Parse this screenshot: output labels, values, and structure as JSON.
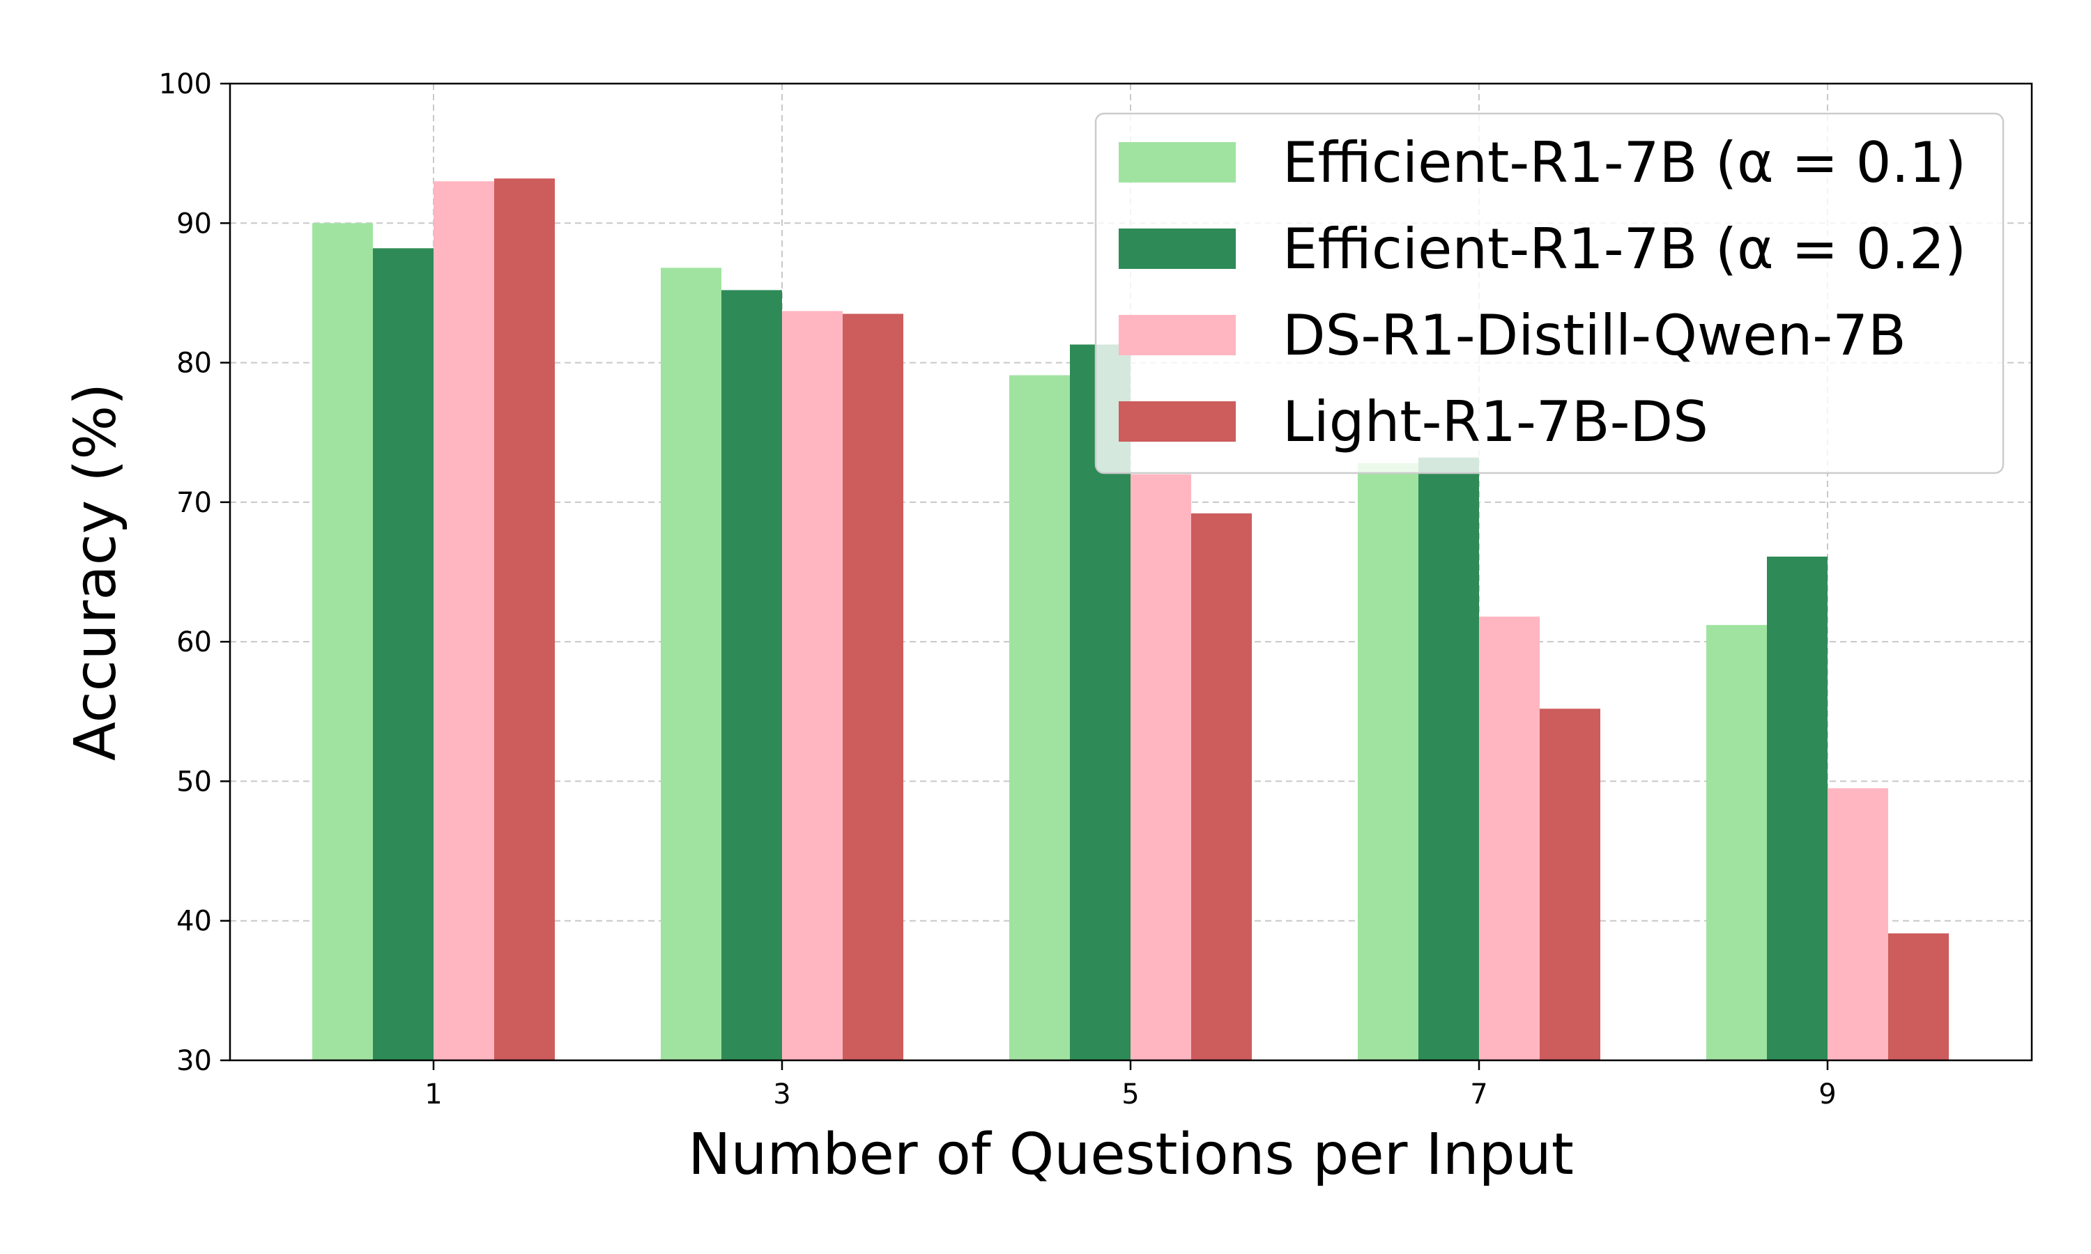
{
  "chart_data": {
    "type": "bar",
    "title": "",
    "xlabel": "Number of Questions per Input",
    "ylabel": "Accuracy (%)",
    "categories": [
      "1",
      "3",
      "5",
      "7",
      "9"
    ],
    "ylim": [
      30,
      100
    ],
    "yticks": [
      "30",
      "40",
      "50",
      "60",
      "70",
      "80",
      "90",
      "100"
    ],
    "grid": true,
    "legend_placement": "top-right",
    "series": [
      {
        "name": "Efficient-R1-7B (α = 0.1)",
        "color": "#a0e3a0",
        "values": [
          90.0,
          86.8,
          79.1,
          72.8,
          61.2
        ]
      },
      {
        "name": "Efficient-R1-7B (α = 0.2)",
        "color": "#2e8b57",
        "values": [
          88.2,
          85.2,
          81.3,
          73.2,
          66.1
        ]
      },
      {
        "name": "DS-R1-Distill-Qwen-7B",
        "color": "#ffb6c1",
        "values": [
          93.0,
          83.7,
          72.0,
          61.8,
          49.5
        ]
      },
      {
        "name": "Light-R1-7B-DS",
        "color": "#cd5c5c",
        "values": [
          93.2,
          83.5,
          69.2,
          55.2,
          39.1
        ]
      }
    ]
  }
}
